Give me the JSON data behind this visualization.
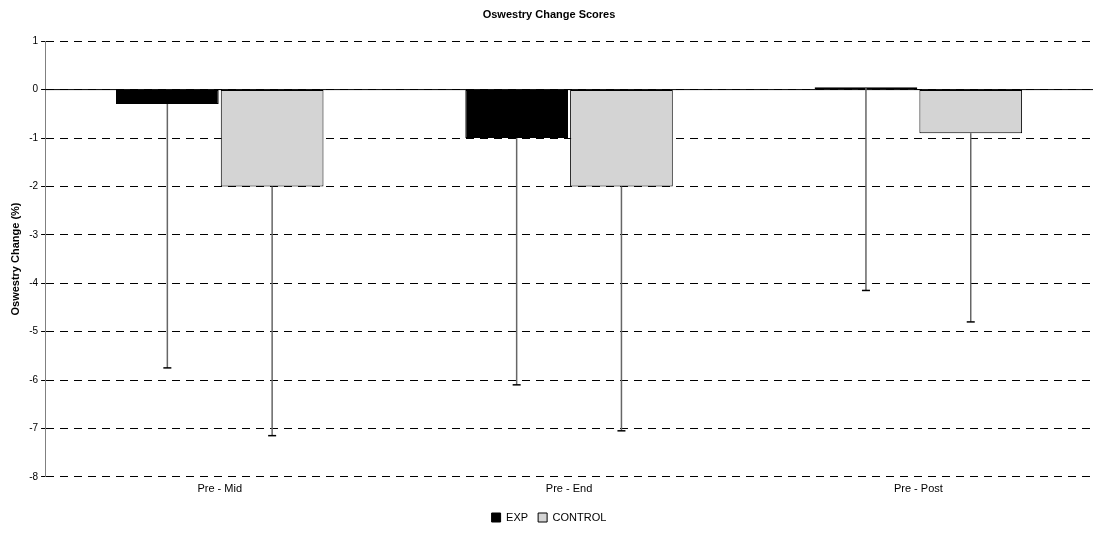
{
  "chart_data": {
    "type": "bar",
    "title": "Oswestry Change Scores",
    "ylabel": "Oswestry Change (%)",
    "categories": [
      "Pre - Mid",
      "Pre - End",
      "Pre - Post"
    ],
    "series": [
      {
        "name": "EXP",
        "color": "#000000",
        "values": [
          -0.3,
          -1.0,
          0.05
        ],
        "errors": [
          [
            -5.75,
            -0.3
          ],
          [
            -6.1,
            -1.0
          ],
          [
            -4.15,
            0.05
          ]
        ]
      },
      {
        "name": "CONTROL",
        "color": "#d4d4d4",
        "values": [
          -2.0,
          -2.0,
          -0.9
        ],
        "errors": [
          [
            -7.15,
            -2.0
          ],
          [
            -7.05,
            -2.0
          ],
          [
            -4.8,
            -0.9
          ]
        ]
      }
    ],
    "ylim": [
      -8,
      1
    ],
    "yticks": [
      -8,
      -7,
      -6,
      -5,
      -4,
      -3,
      -2,
      -1,
      0,
      1
    ],
    "grid": "y",
    "legend": "bottom"
  }
}
